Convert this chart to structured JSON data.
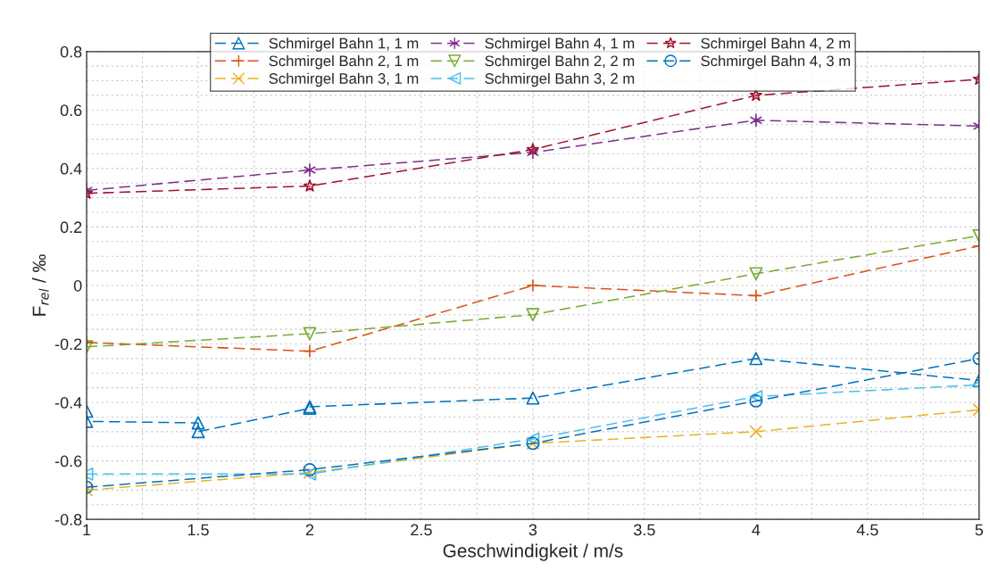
{
  "chart_data": {
    "type": "line",
    "xlabel": "Geschwindigkeit / m/s",
    "ylabel": "F$_{rel}$ / ‰",
    "x": [
      1,
      2,
      3,
      4,
      5
    ],
    "xlim": [
      1,
      5
    ],
    "xticks": [
      1,
      1.5,
      2,
      2.5,
      3,
      3.5,
      4,
      4.5,
      5
    ],
    "ylim": [
      -0.8,
      0.8
    ],
    "yticks": [
      -0.8,
      -0.6,
      -0.4,
      -0.2,
      0,
      0.2,
      0.4,
      0.6,
      0.8
    ],
    "grid": true,
    "legend": "top",
    "line_style": "dashed",
    "series": [
      {
        "name": "Schmirgel Bahn 1, 1 m",
        "color": "#0072bd",
        "marker": "triangle",
        "x": [
          1,
          1,
          1.5,
          1.5,
          2,
          2,
          3,
          4,
          5
        ],
        "values": [
          -0.43,
          -0.465,
          -0.47,
          -0.5,
          -0.42,
          -0.415,
          -0.385,
          -0.25,
          -0.325
        ]
      },
      {
        "name": "Schmirgel Bahn 2, 1 m",
        "color": "#d95319",
        "marker": "plus",
        "values": [
          -0.195,
          -0.225,
          0.0,
          -0.035,
          0.135
        ]
      },
      {
        "name": "Schmirgel Bahn 3, 1 m",
        "color": "#edb120",
        "marker": "x",
        "values": [
          -0.7,
          -0.64,
          -0.54,
          -0.5,
          -0.425
        ]
      },
      {
        "name": "Schmirgel Bahn 4, 1 m",
        "color": "#7e2f8e",
        "marker": "cross",
        "values": [
          0.325,
          0.395,
          0.455,
          0.565,
          0.545
        ]
      },
      {
        "name": "Schmirgel Bahn 2, 2 m",
        "color": "#77ac30",
        "marker": "triangle_down",
        "values": [
          -0.21,
          -0.165,
          -0.1,
          0.04,
          0.17
        ]
      },
      {
        "name": "Schmirgel Bahn 3, 2 m",
        "color": "#4dbeee",
        "marker": "triangle_left",
        "values": [
          -0.645,
          -0.645,
          -0.525,
          -0.38,
          -0.34
        ]
      },
      {
        "name": "Schmirgel Bahn 4, 2 m",
        "color": "#a2142f",
        "marker": "star",
        "values": [
          0.315,
          0.34,
          0.465,
          0.65,
          0.705
        ]
      },
      {
        "name": "Schmirgel Bahn 4, 3 m",
        "color": "#0072bd",
        "marker": "circle",
        "values": [
          -0.69,
          -0.63,
          -0.54,
          -0.395,
          -0.25
        ]
      }
    ]
  }
}
